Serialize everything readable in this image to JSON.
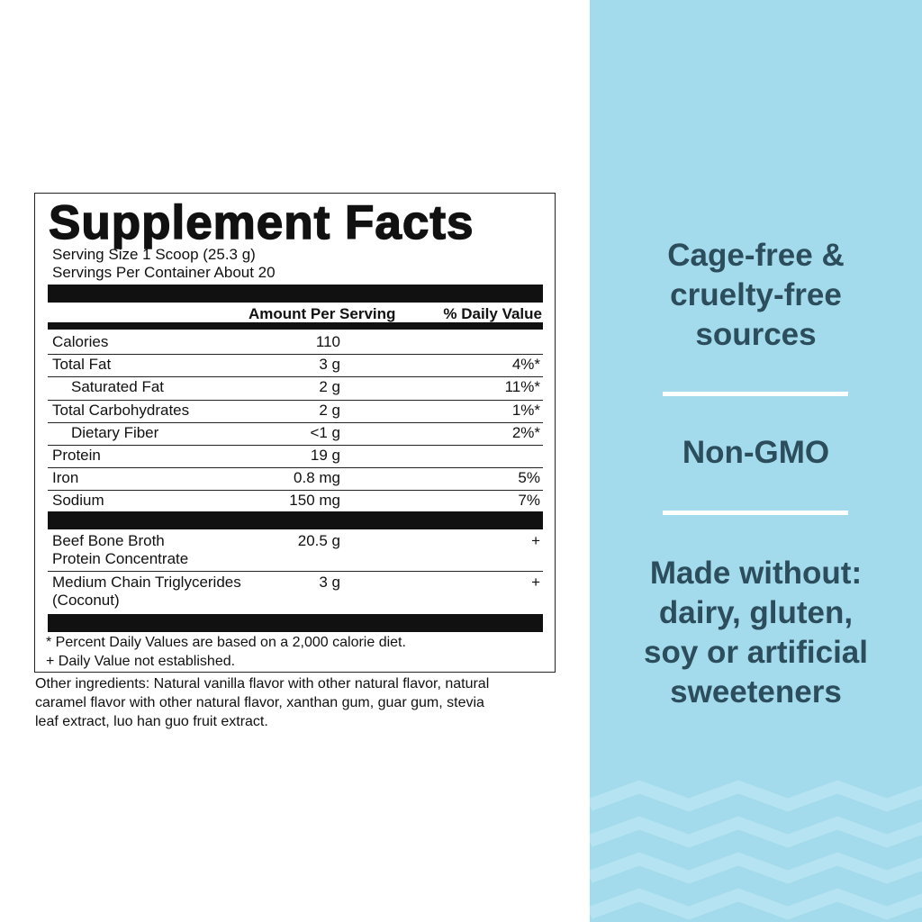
{
  "facts": {
    "title": "Supplement Facts",
    "serving_size": "Serving Size 1 Scoop (25.3 g)",
    "servings": "Servings Per Container About 20",
    "headers": [
      "Amount Per Serving",
      "% Daily Value"
    ],
    "rows": [
      {
        "name": "Calories",
        "amount": "110"
      },
      {
        "name": "Total Fat",
        "amount": "3 g",
        "dv": "4%*"
      },
      {
        "name": "Saturated Fat",
        "amount": "2 g",
        "dv": "11%*",
        "indent": true
      },
      {
        "name": "Total Carbohydrates",
        "amount": "2 g",
        "dv": "1%*"
      },
      {
        "name": "Dietary Fiber",
        "amount": "<1 g",
        "dv": "2%*",
        "indent": true
      },
      {
        "name": "Protein",
        "amount": "19 g"
      },
      {
        "name": "Iron",
        "amount": "0.8 mg",
        "dv": "5%"
      },
      {
        "name": "Sodium",
        "amount": "150 mg",
        "dv": "7%"
      }
    ],
    "ingredient_rows": [
      {
        "name": [
          "Beef Bone Broth",
          "Protein Concentrate"
        ],
        "amount": "20.5 g",
        "dv": "+"
      },
      {
        "name": [
          "Medium Chain Triglycerides",
          "(Coconut)"
        ],
        "amount": "3 g",
        "dv": "+"
      }
    ],
    "footnotes": [
      "* Percent Daily Values are based on a 2,000 calorie diet.",
      "+ Daily Value not established."
    ]
  },
  "other_ingredients": [
    "Other ingredients: Natural vanilla flavor with other natural flavor, natural",
    "caramel flavor with other natural flavor, xanthan gum, guar gum, stevia",
    "leaf extract, luo han guo fruit extract."
  ],
  "claims": [
    [
      "Cage-free &",
      "cruelty-free",
      "sources"
    ],
    [
      "Non-GMO"
    ],
    [
      "Made without:",
      "dairy, gluten,",
      "soy or artificial",
      "sweeteners"
    ]
  ]
}
